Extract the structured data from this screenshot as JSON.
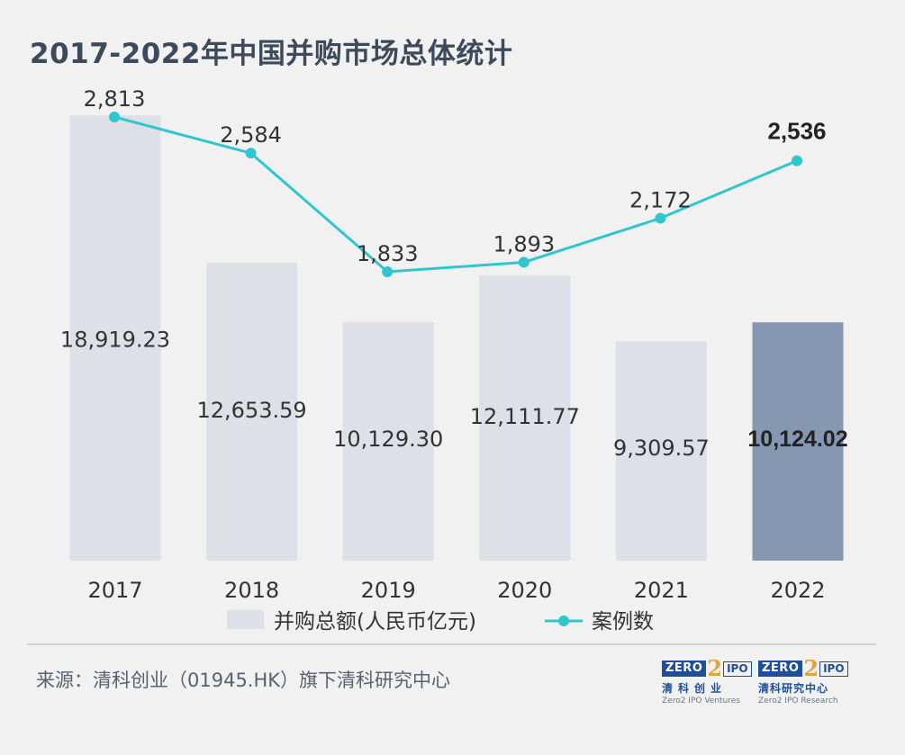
{
  "title": "2017-2022年中国并购市场总体统计",
  "source": "来源：清科创业（01945.HK）旗下清科研究中心",
  "logos": [
    {
      "mark_left": "ZERO",
      "mark_mid": "2",
      "mark_right": "IPO",
      "cn": "清科创业",
      "en": "Zero2 IPO Ventures"
    },
    {
      "mark_left": "ZERO",
      "mark_mid": "2",
      "mark_right": "IPO",
      "cn": "清科研究中心",
      "en": "Zero2 IPO Research"
    }
  ],
  "colors": {
    "bar": "#dde0e6",
    "bar_highlight": "#8698b1",
    "line": "#2fc6cf",
    "text": "#333333",
    "title": "#3c4a5c"
  },
  "chart_data": {
    "type": "bar",
    "categories": [
      "2017",
      "2018",
      "2019",
      "2020",
      "2021",
      "2022"
    ],
    "series": [
      {
        "name": "并购总额(人民币亿元)",
        "type": "bar",
        "values": [
          18919.23,
          12653.59,
          10129.3,
          12111.77,
          9309.57,
          10124.02
        ],
        "labels": [
          "18,919.23",
          "12,653.59",
          "10,129.30",
          "12,111.77",
          "9,309.57",
          "10,124.02"
        ],
        "highlight_index": 5
      },
      {
        "name": "案例数",
        "type": "line",
        "values": [
          2813,
          2584,
          1833,
          1893,
          2172,
          2536
        ],
        "labels": [
          "2,813",
          "2,584",
          "1,833",
          "1,893",
          "2,172",
          "2,536"
        ],
        "highlight_index": 5
      }
    ],
    "bar_ylim": [
      0,
      19000
    ],
    "line_ylim": [
      0,
      2813
    ],
    "legend_position": "bottom",
    "grid": false
  }
}
